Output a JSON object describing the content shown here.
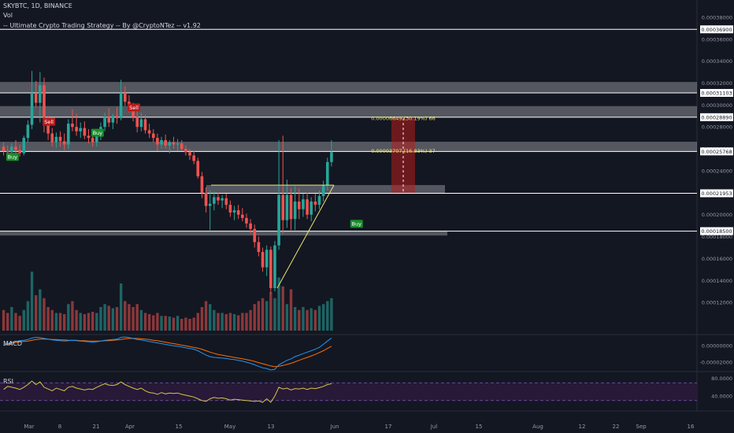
{
  "header": {
    "symbol": "SKYBTC, 1D, BINANCE",
    "vol_label": "Vol",
    "strategy": "-- Ultimate Crypto Trading Strategy -- By @CryptoNTez -- v1.92"
  },
  "colors": {
    "background": "#131722",
    "up": "#26a69a",
    "down": "#ef5350",
    "zone": "#ffffff",
    "triangle": "#e8e36a",
    "measure": "#b71c1c",
    "macd_line": "#2196f3",
    "signal_line": "#ff6d00",
    "rsi_line": "#d4c54a",
    "rsi_band": "#2a1a3a"
  },
  "chart_data": [
    {
      "type": "candlestick",
      "title": "SKYBTC, 1D, BINANCE",
      "ylim": [
        0.0001,
        0.00039
      ],
      "y_ticks": [
        "0.00038000",
        "0.00036000",
        "0.00034000",
        "0.00032000",
        "0.00030000",
        "0.00028000",
        "0.00026000",
        "0.00024000",
        "0.00022000",
        "0.00020000",
        "0.00018000",
        "0.00016000",
        "0.00014000",
        "0.00012000"
      ],
      "x_ticks": [
        "Mar",
        "8",
        "21",
        "Apr",
        "15",
        "May",
        "13",
        "Jun",
        "17",
        "Jul",
        "15",
        "Aug",
        "12",
        "22",
        "Sep",
        "16"
      ],
      "levels": [
        {
          "label": "0.00036900",
          "value": 0.000369
        },
        {
          "label": "0.00031103",
          "value": 0.00031103
        },
        {
          "label": "0.00028890",
          "value": 0.0002889
        },
        {
          "label": "0.00025768",
          "value": 0.00025768
        },
        {
          "label": "0.00021953",
          "value": 0.00021953
        },
        {
          "label": "0.00018500",
          "value": 0.000185
        }
      ],
      "zones": [
        {
          "from": 0.00031103,
          "to": 0.000321
        },
        {
          "from": 0.0002889,
          "to": 0.000299
        },
        {
          "from": 0.0002577,
          "to": 0.0002665
        },
        {
          "from": 0.0002195,
          "to": 0.000227
        },
        {
          "from": 0.000181,
          "to": 0.000185
        }
      ],
      "signals": [
        {
          "label": "Buy",
          "kind": "buy",
          "day": 2,
          "price": 0.000252
        },
        {
          "label": "Sell",
          "kind": "sell",
          "day": 11,
          "price": 0.000284
        },
        {
          "label": "Buy",
          "kind": "buy",
          "day": 23,
          "price": 0.000274
        },
        {
          "label": "Sell",
          "kind": "sell",
          "day": 32,
          "price": 0.000297
        },
        {
          "label": "Buy",
          "kind": "buy",
          "day": 87,
          "price": 0.000191
        }
      ],
      "measurements": [
        {
          "label": "0.00006649 (30.19%) 66",
          "value": 0.0002864
        },
        {
          "label": "0.00003707 (16.83%) 37",
          "value": 0.0002566
        }
      ],
      "candles": [
        [
          0.000262,
          0.000266,
          0.000254,
          0.000258
        ],
        [
          0.000258,
          0.000263,
          0.000252,
          0.000257
        ],
        [
          0.000257,
          0.000265,
          0.000254,
          0.000262
        ],
        [
          0.000262,
          0.000268,
          0.000256,
          0.000259
        ],
        [
          0.000259,
          0.000264,
          0.000253,
          0.000256
        ],
        [
          0.000256,
          0.000272,
          0.000254,
          0.00027
        ],
        [
          0.00027,
          0.000286,
          0.000266,
          0.000282
        ],
        [
          0.000282,
          0.000331,
          0.000278,
          0.000311
        ],
        [
          0.000311,
          0.000322,
          0.000298,
          0.000302
        ],
        [
          0.000302,
          0.00033,
          0.000284,
          0.000318
        ],
        [
          0.000318,
          0.000325,
          0.000275,
          0.000284
        ],
        [
          0.000284,
          0.00029,
          0.000268,
          0.000274
        ],
        [
          0.000274,
          0.000279,
          0.000262,
          0.000266
        ],
        [
          0.000266,
          0.000275,
          0.000261,
          0.000271
        ],
        [
          0.000271,
          0.000276,
          0.000262,
          0.000267
        ],
        [
          0.000267,
          0.000274,
          0.000259,
          0.000264
        ],
        [
          0.000264,
          0.000287,
          0.00026,
          0.000283
        ],
        [
          0.000283,
          0.000296,
          0.000276,
          0.00028
        ],
        [
          0.00028,
          0.000292,
          0.000272,
          0.000276
        ],
        [
          0.000276,
          0.000284,
          0.00027,
          0.000279
        ],
        [
          0.000279,
          0.000285,
          0.000269,
          0.000272
        ],
        [
          0.000272,
          0.000278,
          0.000265,
          0.00027
        ],
        [
          0.00027,
          0.000276,
          0.000262,
          0.000266
        ],
        [
          0.000266,
          0.000274,
          0.000262,
          0.000272
        ],
        [
          0.000272,
          0.000284,
          0.000268,
          0.00028
        ],
        [
          0.00028,
          0.000293,
          0.000276,
          0.000289
        ],
        [
          0.000289,
          0.000297,
          0.00028,
          0.000284
        ],
        [
          0.000284,
          0.000292,
          0.000278,
          0.00029
        ],
        [
          0.00029,
          0.000298,
          0.000283,
          0.000288
        ],
        [
          0.000288,
          0.000323,
          0.000286,
          0.000311
        ],
        [
          0.000311,
          0.000317,
          0.000299,
          0.000303
        ],
        [
          0.000303,
          0.000309,
          0.000293,
          0.000298
        ],
        [
          0.000298,
          0.000302,
          0.000285,
          0.000289
        ],
        [
          0.000289,
          0.000295,
          0.000275,
          0.00028
        ],
        [
          0.00028,
          0.000293,
          0.000276,
          0.000287
        ],
        [
          0.000287,
          0.000291,
          0.000274,
          0.000277
        ],
        [
          0.000277,
          0.000283,
          0.00027,
          0.000274
        ],
        [
          0.000274,
          0.000278,
          0.000266,
          0.00027
        ],
        [
          0.00027,
          0.000274,
          0.000258,
          0.000264
        ],
        [
          0.000264,
          0.000271,
          0.00026,
          0.000268
        ],
        [
          0.000268,
          0.000273,
          0.00026,
          0.000263
        ],
        [
          0.000263,
          0.000268,
          0.000256,
          0.000266
        ],
        [
          0.000266,
          0.000271,
          0.00026,
          0.000264
        ],
        [
          0.000264,
          0.000269,
          0.000258,
          0.000265
        ],
        [
          0.000265,
          0.000268,
          0.000258,
          0.00026
        ],
        [
          0.00026,
          0.000263,
          0.000254,
          0.000257
        ],
        [
          0.000257,
          0.00026,
          0.00025,
          0.000254
        ],
        [
          0.000254,
          0.000258,
          0.000246,
          0.000249
        ],
        [
          0.000249,
          0.000252,
          0.000233,
          0.000235
        ],
        [
          0.000235,
          0.000239,
          0.000215,
          0.00022
        ],
        [
          0.00022,
          0.000225,
          0.000202,
          0.000208
        ],
        [
          0.000208,
          0.000222,
          0.000186,
          0.00021
        ],
        [
          0.00021,
          0.000221,
          0.000204,
          0.000216
        ],
        [
          0.000216,
          0.00022,
          0.000209,
          0.000213
        ],
        [
          0.000213,
          0.000218,
          0.000206,
          0.000215
        ],
        [
          0.000215,
          0.000219,
          0.000205,
          0.000209
        ],
        [
          0.000209,
          0.000213,
          0.000198,
          0.000202
        ],
        [
          0.000202,
          0.000208,
          0.000195,
          0.000204
        ],
        [
          0.000204,
          0.000209,
          0.000196,
          0.0002
        ],
        [
          0.0002,
          0.000206,
          0.000194,
          0.000197
        ],
        [
          0.000197,
          0.000201,
          0.000188,
          0.000192
        ],
        [
          0.000192,
          0.000196,
          0.000183,
          0.000187
        ],
        [
          0.000187,
          0.000191,
          0.00017,
          0.000175
        ],
        [
          0.000175,
          0.00018,
          0.000162,
          0.000166
        ],
        [
          0.000166,
          0.00017,
          0.000148,
          0.000152
        ],
        [
          0.000152,
          0.000172,
          0.000144,
          0.000168
        ],
        [
          0.000168,
          0.000171,
          0.000128,
          0.000133
        ],
        [
          0.000133,
          0.000176,
          0.00013,
          0.000172
        ],
        [
          0.000172,
          0.000268,
          0.000168,
          0.000218
        ],
        [
          0.000218,
          0.000272,
          0.000183,
          0.000195
        ],
        [
          0.000195,
          0.000232,
          0.000188,
          0.000218
        ],
        [
          0.000218,
          0.000224,
          0.000186,
          0.000196
        ],
        [
          0.000196,
          0.000226,
          0.000186,
          0.000212
        ],
        [
          0.000212,
          0.000224,
          0.000196,
          0.000205
        ],
        [
          0.000205,
          0.000219,
          0.000198,
          0.000214
        ],
        [
          0.000214,
          0.00022,
          0.000196,
          0.0002
        ],
        [
          0.0002,
          0.000216,
          0.000194,
          0.000212
        ],
        [
          0.000212,
          0.000219,
          0.000203,
          0.000209
        ],
        [
          0.000209,
          0.000222,
          0.000205,
          0.000217
        ],
        [
          0.000217,
          0.000231,
          0.000212,
          0.000227
        ],
        [
          0.000227,
          0.000252,
          0.000222,
          0.000248
        ],
        [
          0.000248,
          0.000268,
          0.000244,
          0.000257
        ]
      ],
      "volume": [
        0.35,
        0.3,
        0.4,
        0.3,
        0.25,
        0.35,
        0.5,
        1.0,
        0.6,
        0.7,
        0.55,
        0.4,
        0.35,
        0.3,
        0.3,
        0.28,
        0.45,
        0.5,
        0.35,
        0.3,
        0.28,
        0.3,
        0.32,
        0.3,
        0.4,
        0.45,
        0.42,
        0.38,
        0.4,
        0.8,
        0.5,
        0.45,
        0.4,
        0.45,
        0.35,
        0.3,
        0.28,
        0.26,
        0.3,
        0.25,
        0.25,
        0.24,
        0.22,
        0.25,
        0.2,
        0.22,
        0.2,
        0.22,
        0.3,
        0.4,
        0.5,
        0.45,
        0.35,
        0.3,
        0.3,
        0.28,
        0.3,
        0.28,
        0.26,
        0.3,
        0.3,
        0.35,
        0.45,
        0.5,
        0.55,
        0.5,
        0.65,
        0.55,
        0.9,
        0.75,
        0.45,
        0.7,
        0.4,
        0.35,
        0.4,
        0.35,
        0.38,
        0.35,
        0.42,
        0.45,
        0.5,
        0.55
      ],
      "macd": [
        0.0,
        0.5,
        0.9,
        1.1,
        1.3,
        1.4,
        1.6,
        2.0,
        2.2,
        2.1,
        1.9,
        1.7,
        1.5,
        1.4,
        1.3,
        1.2,
        1.3,
        1.4,
        1.3,
        1.2,
        1.1,
        1.0,
        0.9,
        1.0,
        1.2,
        1.4,
        1.5,
        1.6,
        1.7,
        2.2,
        2.3,
        2.1,
        1.9,
        1.6,
        1.5,
        1.3,
        1.1,
        0.9,
        0.7,
        0.5,
        0.3,
        0.1,
        -0.1,
        -0.2,
        -0.4,
        -0.6,
        -0.8,
        -1.0,
        -1.4,
        -2.0,
        -2.6,
        -3.0,
        -3.2,
        -3.3,
        -3.4,
        -3.5,
        -3.7,
        -3.8,
        -4.0,
        -4.2,
        -4.5,
        -4.8,
        -5.2,
        -5.6,
        -6.0,
        -6.2,
        -6.6,
        -6.4,
        -5.2,
        -4.6,
        -4.0,
        -3.6,
        -3.0,
        -2.6,
        -2.2,
        -1.8,
        -1.4,
        -1.0,
        -0.5,
        0.3,
        1.2,
        2.0
      ],
      "signal": [
        0.0,
        0.3,
        0.6,
        0.8,
        1.0,
        1.1,
        1.2,
        1.4,
        1.6,
        1.7,
        1.7,
        1.7,
        1.6,
        1.6,
        1.5,
        1.5,
        1.4,
        1.4,
        1.4,
        1.3,
        1.3,
        1.2,
        1.2,
        1.2,
        1.2,
        1.3,
        1.3,
        1.4,
        1.5,
        1.6,
        1.8,
        1.9,
        1.9,
        1.9,
        1.8,
        1.7,
        1.6,
        1.4,
        1.3,
        1.1,
        0.9,
        0.7,
        0.5,
        0.3,
        0.1,
        -0.1,
        -0.3,
        -0.5,
        -0.7,
        -1.0,
        -1.4,
        -1.8,
        -2.1,
        -2.4,
        -2.6,
        -2.8,
        -3.0,
        -3.2,
        -3.4,
        -3.6,
        -3.8,
        -4.0,
        -4.3,
        -4.6,
        -4.9,
        -5.2,
        -5.5,
        -5.7,
        -5.6,
        -5.4,
        -5.1,
        -4.8,
        -4.4,
        -4.0,
        -3.6,
        -3.2,
        -2.8,
        -2.4,
        -1.9,
        -1.4,
        -0.8,
        -0.2
      ],
      "macd_ticks": [
        "0.00000000",
        "-0.00002000"
      ],
      "rsi": [
        55,
        62,
        60,
        58,
        55,
        60,
        66,
        74,
        66,
        72,
        60,
        56,
        52,
        58,
        55,
        52,
        60,
        62,
        58,
        56,
        54,
        56,
        55,
        60,
        64,
        68,
        65,
        64,
        66,
        72,
        66,
        62,
        58,
        55,
        58,
        52,
        48,
        47,
        44,
        48,
        45,
        47,
        46,
        47,
        44,
        42,
        40,
        38,
        34,
        30,
        28,
        34,
        37,
        35,
        36,
        34,
        31,
        33,
        32,
        31,
        30,
        29,
        28,
        29,
        26,
        34,
        26,
        40,
        60,
        56,
        58,
        54,
        57,
        56,
        58,
        55,
        58,
        57,
        59,
        62,
        66,
        68
      ],
      "rsi_ticks": [
        "80.0000",
        "40.0000"
      ],
      "rsi_band": [
        70,
        30
      ],
      "rsi_ylim": [
        10,
        90
      ]
    }
  ],
  "panes": {
    "macd_label": "MACD",
    "rsi_label": "RSI"
  }
}
